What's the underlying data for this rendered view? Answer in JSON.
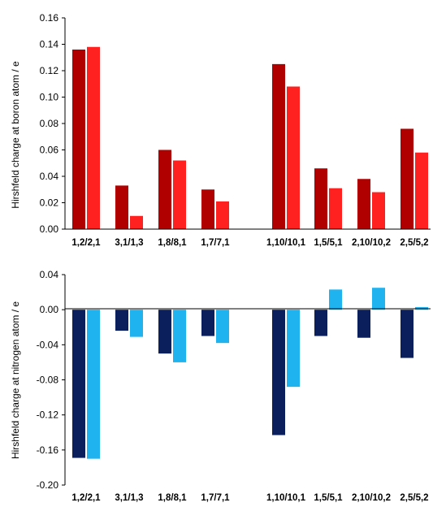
{
  "colors": {
    "boron_dark": "#b00000",
    "boron_light": "#ff2020",
    "nitrogen_dark": "#0a1f5c",
    "nitrogen_light": "#1fb3f0"
  },
  "chart_data": [
    {
      "type": "bar",
      "ylabel": "Hirshfeld charge at boron atom / e",
      "ylim": [
        0,
        0.16
      ],
      "yticks": [
        "0.00",
        "0.02",
        "0.04",
        "0.06",
        "0.08",
        "0.10",
        "0.12",
        "0.14",
        "0.16"
      ],
      "categories": [
        "1,2/2,1",
        "3,1/1,3",
        "1,8/8,1",
        "1,7/7,1",
        "1,10/10,1",
        "1,5/5,1",
        "2,10/10,2",
        "2,5/5,2"
      ],
      "series": [
        {
          "values": [
            0.136,
            0.033,
            0.06,
            0.03,
            0.125,
            0.046,
            0.038,
            0.076
          ]
        },
        {
          "values": [
            0.138,
            0.01,
            0.052,
            0.021,
            0.108,
            0.031,
            0.028,
            0.058
          ]
        }
      ],
      "grid": false
    },
    {
      "type": "bar",
      "ylabel": "Hirshfeld charge at nitrogen atom / e",
      "ylim": [
        -0.2,
        0.04
      ],
      "yticks": [
        "-0.20",
        "-0.16",
        "-0.12",
        "-0.08",
        "-0.04",
        "0.00",
        "0.04"
      ],
      "categories": [
        "1,2/2,1",
        "3,1/1,3",
        "1,8/8,1",
        "1,7/7,1",
        "1,10/10,1",
        "1,5/5,1",
        "2,10/10,2",
        "2,5/5,2"
      ],
      "series": [
        {
          "values": [
            -0.169,
            -0.024,
            -0.05,
            -0.03,
            -0.143,
            -0.03,
            -0.032,
            -0.055
          ]
        },
        {
          "values": [
            -0.17,
            -0.031,
            -0.06,
            -0.038,
            -0.088,
            0.023,
            0.025,
            0.003
          ]
        }
      ],
      "grid": false
    }
  ]
}
